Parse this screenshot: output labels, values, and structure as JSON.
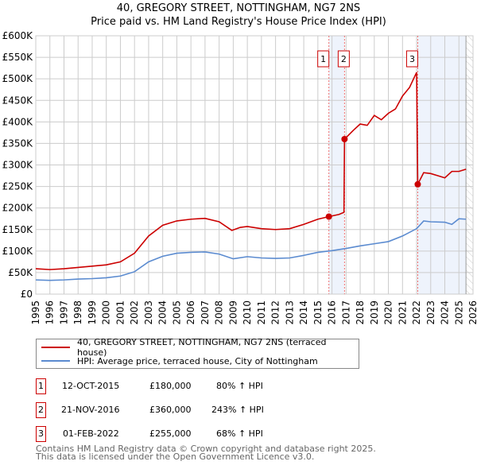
{
  "title1": "40, GREGORY STREET, NOTTINGHAM, NG7 2NS",
  "title2": "Price paid vs. HM Land Registry's House Price Index (HPI)",
  "chart_data": {
    "type": "line",
    "xlim": [
      1995,
      2026
    ],
    "ylim": [
      0,
      600000
    ],
    "yticks": [
      0,
      50000,
      100000,
      150000,
      200000,
      250000,
      300000,
      350000,
      400000,
      450000,
      500000,
      550000,
      600000
    ],
    "ytick_labels": [
      "£0",
      "£50K",
      "£100K",
      "£150K",
      "£200K",
      "£250K",
      "£300K",
      "£350K",
      "£400K",
      "£450K",
      "£500K",
      "£550K",
      "£600K"
    ],
    "xticks": [
      1995,
      1996,
      1997,
      1998,
      1999,
      2000,
      2001,
      2002,
      2003,
      2004,
      2005,
      2006,
      2007,
      2008,
      2009,
      2010,
      2011,
      2012,
      2013,
      2014,
      2015,
      2016,
      2017,
      2018,
      2019,
      2020,
      2021,
      2022,
      2023,
      2024,
      2025,
      2026
    ],
    "grid": true,
    "series": [
      {
        "name": "40, GREGORY STREET, NOTTINGHAM, NG7 2NS (terraced house)",
        "color": "#cc0000",
        "points": [
          [
            1995,
            59000
          ],
          [
            1996,
            57000
          ],
          [
            1997,
            59000
          ],
          [
            1998,
            62000
          ],
          [
            1999,
            65000
          ],
          [
            2000,
            68000
          ],
          [
            2001,
            75000
          ],
          [
            2002,
            95000
          ],
          [
            2003,
            135000
          ],
          [
            2004,
            160000
          ],
          [
            2005,
            170000
          ],
          [
            2006,
            174000
          ],
          [
            2007,
            176000
          ],
          [
            2008,
            168000
          ],
          [
            2008.9,
            148000
          ],
          [
            2009.5,
            155000
          ],
          [
            2010,
            157000
          ],
          [
            2011,
            152000
          ],
          [
            2012,
            150000
          ],
          [
            2013,
            152000
          ],
          [
            2014,
            162000
          ],
          [
            2015,
            174000
          ],
          [
            2015.78,
            180000
          ],
          [
            2016.5,
            185000
          ],
          [
            2016.85,
            190000
          ],
          [
            2016.89,
            360000
          ],
          [
            2017.5,
            380000
          ],
          [
            2018,
            395000
          ],
          [
            2018.5,
            392000
          ],
          [
            2019,
            415000
          ],
          [
            2019.5,
            405000
          ],
          [
            2020,
            420000
          ],
          [
            2020.5,
            430000
          ],
          [
            2021,
            460000
          ],
          [
            2021.5,
            480000
          ],
          [
            2022.0,
            515000
          ],
          [
            2022.08,
            255000
          ],
          [
            2022.5,
            282000
          ],
          [
            2023,
            280000
          ],
          [
            2023.5,
            275000
          ],
          [
            2024,
            270000
          ],
          [
            2024.5,
            285000
          ],
          [
            2025,
            285000
          ],
          [
            2025.5,
            290000
          ]
        ]
      },
      {
        "name": "HPI: Average price, terraced house, City of Nottingham",
        "color": "#5b8bd0",
        "points": [
          [
            1995,
            33000
          ],
          [
            1996,
            32000
          ],
          [
            1997,
            33000
          ],
          [
            1998,
            35000
          ],
          [
            1999,
            36000
          ],
          [
            2000,
            38000
          ],
          [
            2001,
            42000
          ],
          [
            2002,
            52000
          ],
          [
            2003,
            75000
          ],
          [
            2004,
            88000
          ],
          [
            2005,
            95000
          ],
          [
            2006,
            97000
          ],
          [
            2007,
            98000
          ],
          [
            2008,
            93000
          ],
          [
            2009,
            82000
          ],
          [
            2010,
            87000
          ],
          [
            2011,
            84000
          ],
          [
            2012,
            83000
          ],
          [
            2013,
            84000
          ],
          [
            2014,
            90000
          ],
          [
            2015,
            97000
          ],
          [
            2016,
            101000
          ],
          [
            2017,
            106000
          ],
          [
            2018,
            112000
          ],
          [
            2019,
            117000
          ],
          [
            2020,
            122000
          ],
          [
            2021,
            135000
          ],
          [
            2022,
            152000
          ],
          [
            2022.5,
            170000
          ],
          [
            2023,
            168000
          ],
          [
            2024,
            167000
          ],
          [
            2024.5,
            162000
          ],
          [
            2025,
            175000
          ],
          [
            2025.5,
            174000
          ]
        ]
      }
    ],
    "sales": [
      {
        "n": "1",
        "x": 2015.78,
        "y": 180000,
        "date": "12-OCT-2015",
        "price": "£180,000",
        "hpi": "80% ↑ HPI"
      },
      {
        "n": "2",
        "x": 2016.89,
        "y": 360000,
        "date": "21-NOV-2016",
        "price": "£360,000",
        "hpi": "243% ↑ HPI"
      },
      {
        "n": "3",
        "x": 2022.08,
        "y": 255000,
        "date": "01-FEB-2022",
        "price": "£255,000",
        "hpi": "68% ↑ HPI"
      }
    ],
    "shaded": [
      [
        2015.78,
        2016.89
      ],
      [
        2022.08,
        2025.5
      ]
    ],
    "hatched_from": 2025.5
  },
  "legend": {
    "red": "40, GREGORY STREET, NOTTINGHAM, NG7 2NS (terraced house)",
    "blue": "HPI: Average price, terraced house, City of Nottingham"
  },
  "footer1": "Contains HM Land Registry data © Crown copyright and database right 2025.",
  "footer2": "This data is licensed under the Open Government Licence v3.0."
}
